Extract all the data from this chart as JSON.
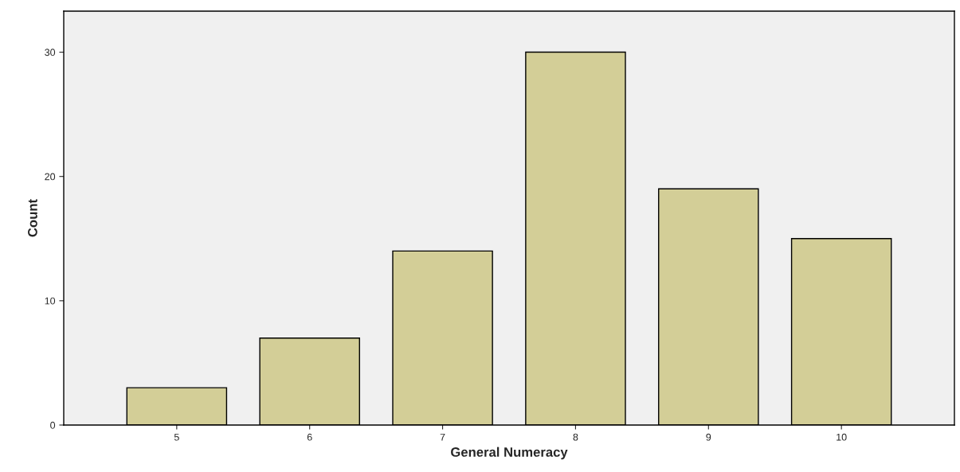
{
  "chart_data": {
    "type": "bar",
    "xlabel": "General Numeracy",
    "ylabel": "Count",
    "categories": [
      "5",
      "6",
      "7",
      "8",
      "9",
      "10"
    ],
    "values": [
      3,
      7,
      14,
      30,
      19,
      15
    ],
    "color": "#d3ce97",
    "ylim": [
      0,
      33.3
    ],
    "yticks": [
      0,
      10,
      20,
      30
    ],
    "grid": false,
    "legend": false
  }
}
